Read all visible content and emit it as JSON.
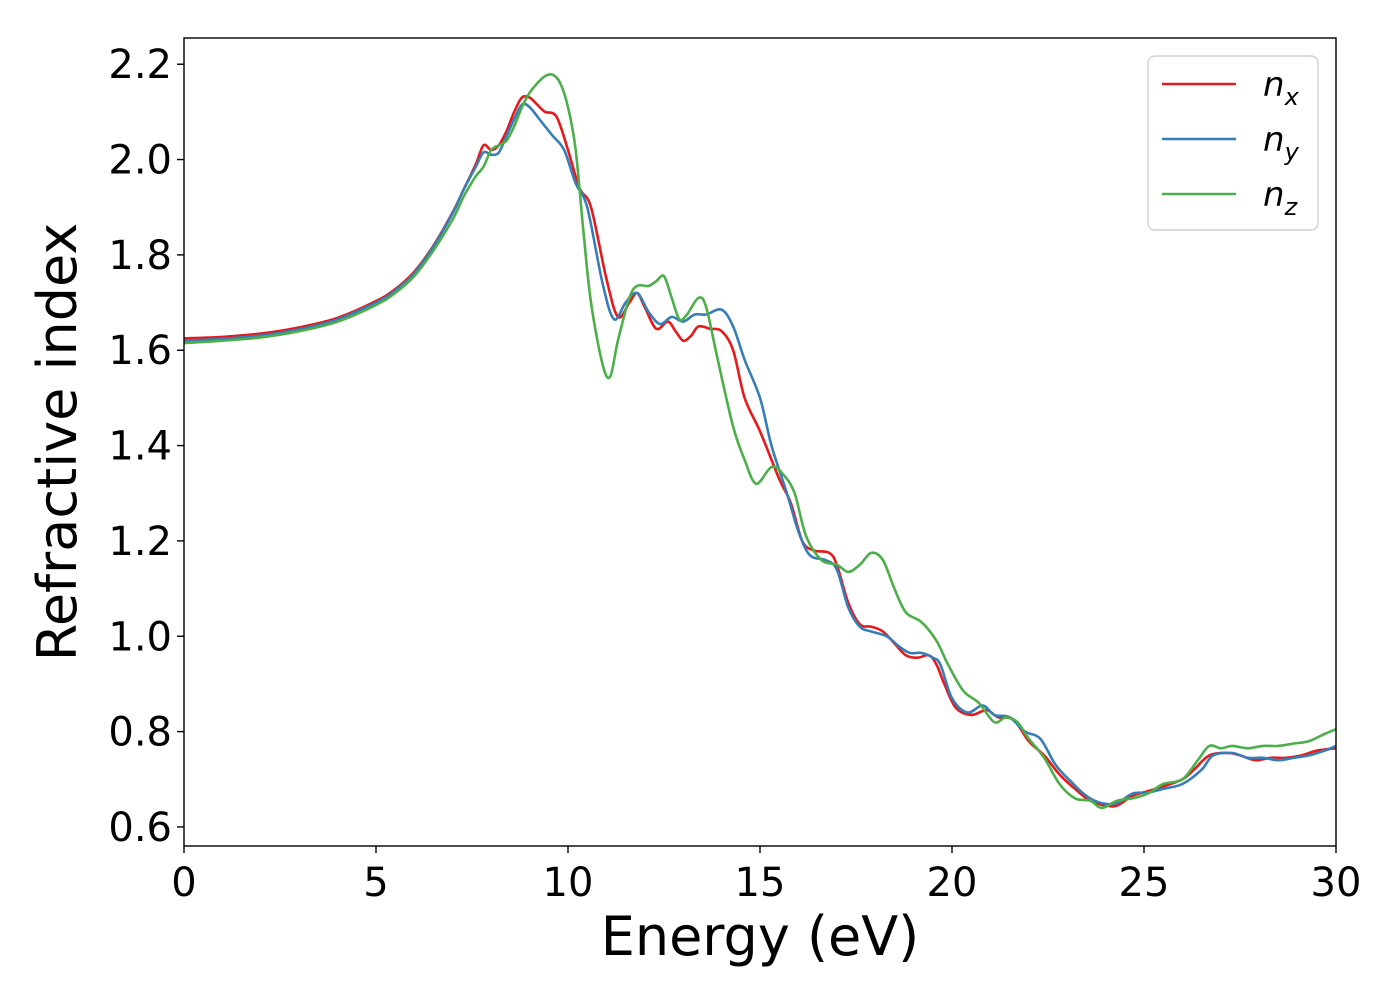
{
  "chart_data": {
    "type": "line",
    "xlabel": "Energy (eV)",
    "ylabel": "Refractive index",
    "xlim": [
      0,
      30
    ],
    "ylim": [
      0.56,
      2.255
    ],
    "xticks": [
      0,
      5,
      10,
      15,
      20,
      25,
      30
    ],
    "yticks": [
      0.6,
      0.8,
      1.0,
      1.2,
      1.4,
      1.6,
      1.8,
      2.0,
      2.2
    ],
    "xtick_labels": [
      "0",
      "5",
      "10",
      "15",
      "20",
      "25",
      "30"
    ],
    "ytick_labels": [
      "0.6",
      "0.8",
      "1.0",
      "1.2",
      "1.4",
      "1.6",
      "1.8",
      "2.0",
      "2.2"
    ],
    "grid": false,
    "legend_position": "top-right",
    "series": [
      {
        "name": "n",
        "sub": "x",
        "color": "#e41a1c",
        "points": [
          [
            0,
            1.625
          ],
          [
            1,
            1.628
          ],
          [
            2,
            1.635
          ],
          [
            3,
            1.648
          ],
          [
            4,
            1.668
          ],
          [
            5,
            1.703
          ],
          [
            5.5,
            1.728
          ],
          [
            6,
            1.765
          ],
          [
            6.5,
            1.82
          ],
          [
            7,
            1.89
          ],
          [
            7.3,
            1.94
          ],
          [
            7.6,
            1.99
          ],
          [
            7.8,
            2.03
          ],
          [
            8.0,
            2.02
          ],
          [
            8.2,
            2.03
          ],
          [
            8.4,
            2.06
          ],
          [
            8.6,
            2.1
          ],
          [
            8.8,
            2.13
          ],
          [
            9.0,
            2.13
          ],
          [
            9.2,
            2.115
          ],
          [
            9.4,
            2.1
          ],
          [
            9.7,
            2.09
          ],
          [
            10.0,
            2.02
          ],
          [
            10.3,
            1.94
          ],
          [
            10.6,
            1.9
          ],
          [
            11.0,
            1.75
          ],
          [
            11.3,
            1.67
          ],
          [
            11.6,
            1.7
          ],
          [
            11.8,
            1.72
          ],
          [
            12.0,
            1.69
          ],
          [
            12.3,
            1.645
          ],
          [
            12.6,
            1.66
          ],
          [
            12.8,
            1.64
          ],
          [
            13.0,
            1.62
          ],
          [
            13.2,
            1.63
          ],
          [
            13.4,
            1.65
          ],
          [
            13.7,
            1.645
          ],
          [
            14.0,
            1.64
          ],
          [
            14.3,
            1.6
          ],
          [
            14.6,
            1.5
          ],
          [
            15.0,
            1.43
          ],
          [
            15.5,
            1.33
          ],
          [
            15.8,
            1.28
          ],
          [
            16.1,
            1.2
          ],
          [
            16.4,
            1.18
          ],
          [
            16.8,
            1.175
          ],
          [
            17.0,
            1.15
          ],
          [
            17.3,
            1.07
          ],
          [
            17.6,
            1.025
          ],
          [
            17.9,
            1.02
          ],
          [
            18.2,
            1.01
          ],
          [
            18.5,
            0.985
          ],
          [
            18.8,
            0.96
          ],
          [
            19.1,
            0.955
          ],
          [
            19.4,
            0.96
          ],
          [
            19.6,
            0.94
          ],
          [
            19.8,
            0.9
          ],
          [
            20.1,
            0.85
          ],
          [
            20.5,
            0.835
          ],
          [
            20.9,
            0.845
          ],
          [
            21.2,
            0.83
          ],
          [
            21.6,
            0.825
          ],
          [
            22.0,
            0.78
          ],
          [
            22.4,
            0.75
          ],
          [
            22.8,
            0.71
          ],
          [
            23.2,
            0.68
          ],
          [
            23.6,
            0.655
          ],
          [
            24.0,
            0.645
          ],
          [
            24.3,
            0.645
          ],
          [
            24.7,
            0.665
          ],
          [
            25.1,
            0.675
          ],
          [
            25.5,
            0.685
          ],
          [
            26.0,
            0.7
          ],
          [
            26.3,
            0.72
          ],
          [
            26.7,
            0.75
          ],
          [
            27.2,
            0.755
          ],
          [
            27.5,
            0.75
          ],
          [
            27.9,
            0.74
          ],
          [
            28.3,
            0.745
          ],
          [
            28.7,
            0.745
          ],
          [
            29.1,
            0.75
          ],
          [
            29.5,
            0.76
          ],
          [
            30.0,
            0.765
          ]
        ]
      },
      {
        "name": "n",
        "sub": "y",
        "color": "#377eb8",
        "points": [
          [
            0,
            1.62
          ],
          [
            1,
            1.624
          ],
          [
            2,
            1.631
          ],
          [
            3,
            1.644
          ],
          [
            4,
            1.665
          ],
          [
            5,
            1.7
          ],
          [
            5.5,
            1.725
          ],
          [
            6,
            1.762
          ],
          [
            6.5,
            1.818
          ],
          [
            7,
            1.888
          ],
          [
            7.3,
            1.94
          ],
          [
            7.6,
            1.985
          ],
          [
            7.8,
            2.015
          ],
          [
            8.0,
            2.01
          ],
          [
            8.2,
            2.015
          ],
          [
            8.4,
            2.05
          ],
          [
            8.6,
            2.085
          ],
          [
            8.8,
            2.115
          ],
          [
            9.0,
            2.11
          ],
          [
            9.3,
            2.08
          ],
          [
            9.6,
            2.05
          ],
          [
            9.9,
            2.02
          ],
          [
            10.2,
            1.95
          ],
          [
            10.5,
            1.9
          ],
          [
            10.9,
            1.74
          ],
          [
            11.2,
            1.665
          ],
          [
            11.5,
            1.7
          ],
          [
            11.8,
            1.72
          ],
          [
            12.1,
            1.68
          ],
          [
            12.4,
            1.655
          ],
          [
            12.7,
            1.67
          ],
          [
            13.0,
            1.66
          ],
          [
            13.3,
            1.675
          ],
          [
            13.6,
            1.675
          ],
          [
            14.0,
            1.685
          ],
          [
            14.3,
            1.65
          ],
          [
            14.6,
            1.58
          ],
          [
            15.0,
            1.5
          ],
          [
            15.3,
            1.4
          ],
          [
            15.7,
            1.3
          ],
          [
            16.0,
            1.22
          ],
          [
            16.3,
            1.17
          ],
          [
            16.7,
            1.16
          ],
          [
            17.0,
            1.14
          ],
          [
            17.3,
            1.06
          ],
          [
            17.6,
            1.02
          ],
          [
            17.9,
            1.01
          ],
          [
            18.3,
            1.0
          ],
          [
            18.6,
            0.98
          ],
          [
            18.9,
            0.965
          ],
          [
            19.2,
            0.965
          ],
          [
            19.5,
            0.955
          ],
          [
            19.7,
            0.94
          ],
          [
            20.0,
            0.87
          ],
          [
            20.4,
            0.84
          ],
          [
            20.8,
            0.855
          ],
          [
            21.1,
            0.835
          ],
          [
            21.5,
            0.83
          ],
          [
            21.9,
            0.8
          ],
          [
            22.3,
            0.785
          ],
          [
            22.7,
            0.73
          ],
          [
            23.1,
            0.695
          ],
          [
            23.5,
            0.665
          ],
          [
            23.9,
            0.65
          ],
          [
            24.3,
            0.65
          ],
          [
            24.7,
            0.67
          ],
          [
            25.1,
            0.672
          ],
          [
            25.5,
            0.68
          ],
          [
            26.0,
            0.69
          ],
          [
            26.5,
            0.72
          ],
          [
            26.8,
            0.75
          ],
          [
            27.3,
            0.755
          ],
          [
            27.7,
            0.745
          ],
          [
            28.1,
            0.745
          ],
          [
            28.5,
            0.74
          ],
          [
            28.9,
            0.745
          ],
          [
            29.3,
            0.75
          ],
          [
            29.7,
            0.76
          ],
          [
            30.0,
            0.77
          ]
        ]
      },
      {
        "name": "n",
        "sub": "z",
        "color": "#4daf4a",
        "points": [
          [
            0,
            1.615
          ],
          [
            1,
            1.62
          ],
          [
            2,
            1.627
          ],
          [
            3,
            1.64
          ],
          [
            4,
            1.66
          ],
          [
            5,
            1.695
          ],
          [
            5.5,
            1.72
          ],
          [
            6,
            1.756
          ],
          [
            6.5,
            1.81
          ],
          [
            7,
            1.875
          ],
          [
            7.3,
            1.925
          ],
          [
            7.6,
            1.965
          ],
          [
            7.8,
            1.985
          ],
          [
            8.0,
            2.02
          ],
          [
            8.2,
            2.03
          ],
          [
            8.4,
            2.04
          ],
          [
            8.6,
            2.07
          ],
          [
            8.8,
            2.11
          ],
          [
            9.0,
            2.14
          ],
          [
            9.2,
            2.16
          ],
          [
            9.4,
            2.175
          ],
          [
            9.6,
            2.178
          ],
          [
            9.8,
            2.16
          ],
          [
            10.0,
            2.11
          ],
          [
            10.2,
            2.02
          ],
          [
            10.4,
            1.85
          ],
          [
            10.6,
            1.7
          ],
          [
            10.9,
            1.57
          ],
          [
            11.1,
            1.545
          ],
          [
            11.3,
            1.62
          ],
          [
            11.6,
            1.71
          ],
          [
            11.8,
            1.735
          ],
          [
            12.1,
            1.735
          ],
          [
            12.3,
            1.745
          ],
          [
            12.5,
            1.755
          ],
          [
            12.7,
            1.71
          ],
          [
            12.9,
            1.665
          ],
          [
            13.1,
            1.675
          ],
          [
            13.4,
            1.71
          ],
          [
            13.6,
            1.69
          ],
          [
            13.9,
            1.58
          ],
          [
            14.3,
            1.44
          ],
          [
            14.6,
            1.37
          ],
          [
            14.9,
            1.32
          ],
          [
            15.3,
            1.355
          ],
          [
            15.6,
            1.34
          ],
          [
            15.9,
            1.3
          ],
          [
            16.2,
            1.21
          ],
          [
            16.6,
            1.16
          ],
          [
            17.0,
            1.15
          ],
          [
            17.3,
            1.135
          ],
          [
            17.6,
            1.15
          ],
          [
            17.9,
            1.175
          ],
          [
            18.2,
            1.16
          ],
          [
            18.5,
            1.1
          ],
          [
            18.8,
            1.05
          ],
          [
            19.2,
            1.03
          ],
          [
            19.6,
            0.99
          ],
          [
            19.9,
            0.94
          ],
          [
            20.3,
            0.885
          ],
          [
            20.7,
            0.86
          ],
          [
            21.1,
            0.82
          ],
          [
            21.4,
            0.83
          ],
          [
            21.7,
            0.82
          ],
          [
            22.0,
            0.785
          ],
          [
            22.4,
            0.745
          ],
          [
            22.8,
            0.69
          ],
          [
            23.2,
            0.66
          ],
          [
            23.6,
            0.655
          ],
          [
            23.9,
            0.64
          ],
          [
            24.3,
            0.655
          ],
          [
            24.7,
            0.66
          ],
          [
            25.1,
            0.67
          ],
          [
            25.5,
            0.69
          ],
          [
            26.0,
            0.7
          ],
          [
            26.4,
            0.74
          ],
          [
            26.7,
            0.77
          ],
          [
            27.0,
            0.765
          ],
          [
            27.3,
            0.77
          ],
          [
            27.7,
            0.765
          ],
          [
            28.1,
            0.77
          ],
          [
            28.5,
            0.77
          ],
          [
            28.9,
            0.775
          ],
          [
            29.3,
            0.78
          ],
          [
            29.7,
            0.795
          ],
          [
            30.0,
            0.805
          ]
        ]
      }
    ]
  }
}
